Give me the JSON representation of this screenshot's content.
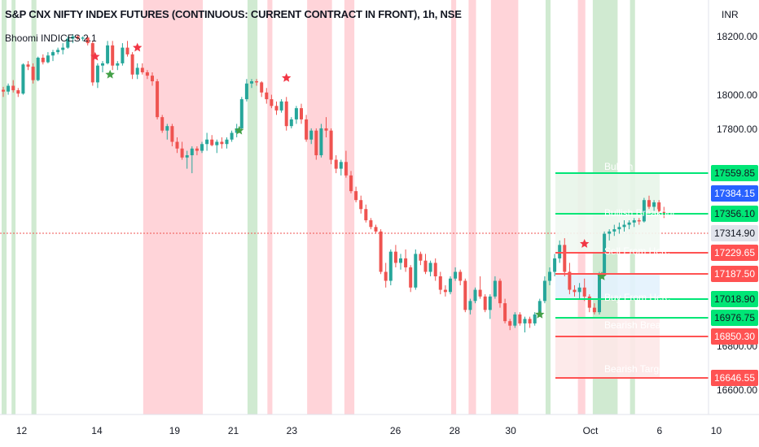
{
  "header": {
    "title": "S&P CNX NIFTY INDEX FUTURES (CONTINUOUS: CURRENT CONTRACT IN FRONT), 1h, NSE",
    "indicator": "Bhoomi INDICES 2.1"
  },
  "colors": {
    "bull": "#26a69a",
    "bear": "#ef5350",
    "green_band": "#c8e6c9",
    "red_band": "#ffcdd2",
    "line_green": "#00e676",
    "line_red": "#ff5252",
    "last_price": "#1e88e5"
  },
  "chart_data": {
    "type": "candlestick",
    "currency": "INR",
    "ylim": [
      15900,
      18320
    ],
    "y_ticks": [
      18200,
      18000,
      17800,
      16800,
      16600
    ],
    "y_tick_labels": [
      "18200.00",
      "18000.00",
      "17800.00",
      "16800.00",
      "16600.00"
    ],
    "x_ticks": [
      {
        "label": "12",
        "x": 1.5
      },
      {
        "label": "14",
        "x": 32
      },
      {
        "label": "19",
        "x": 63.5
      },
      {
        "label": "21",
        "x": 87.3
      },
      {
        "label": "23",
        "x": 111
      },
      {
        "label": "26",
        "x": 153
      },
      {
        "label": "28",
        "x": 177
      },
      {
        "label": "30",
        "x": 199.7
      },
      {
        "label": "Oct",
        "x": 232
      },
      {
        "label": "6",
        "x": 260
      },
      {
        "label": "10",
        "x": 283
      }
    ],
    "last_price": 17314.9,
    "levels": [
      {
        "name": "Bullish Target",
        "value": 17559.85,
        "label": "17559.85",
        "tone": "green"
      },
      {
        "name": "Bullish Breakout",
        "value": 17356.1,
        "label": "17356.10",
        "tone": "green"
      },
      {
        "name": "Sell From Here",
        "value": 17229.65,
        "label": "17229.65",
        "tone": "red"
      },
      {
        "name": "Sell From Here",
        "value": 17187.5,
        "label": "17187.50",
        "tone": "red"
      },
      {
        "name": "Buy From Here",
        "value": 17018.9,
        "label": "17018.90",
        "tone": "green"
      },
      {
        "name": "Buy From Here",
        "value": 16976.75,
        "label": "16976.75",
        "tone": "green"
      },
      {
        "name": "Bearish Breakout",
        "value": 16850.3,
        "label": "16850.30",
        "tone": "red"
      },
      {
        "name": "Bearish Target",
        "value": 16646.55,
        "label": "16646.55",
        "tone": "red"
      }
    ],
    "badges": [
      {
        "value": 17559.85,
        "label": "17559.85",
        "tone": "green"
      },
      {
        "value": 17384.15,
        "label": "17384.15",
        "tone": "blue"
      },
      {
        "value": 17356.1,
        "label": "17356.10",
        "tone": "green"
      },
      {
        "value": 17314.9,
        "label": "17314.90",
        "tone": "gray"
      },
      {
        "value": 17229.65,
        "label": "17229.65",
        "tone": "red"
      },
      {
        "value": 17187.5,
        "label": "17187.50",
        "tone": "red"
      },
      {
        "value": 17018.9,
        "label": "17018.90",
        "tone": "green"
      },
      {
        "value": 16976.75,
        "label": "16976.75",
        "tone": "green"
      },
      {
        "value": 16850.3,
        "label": "16850.30",
        "tone": "red"
      },
      {
        "value": 16646.55,
        "label": "16646.55",
        "tone": "red"
      }
    ],
    "level_captions": [
      "Bullish Target",
      "Bullish Breakout",
      "Sell From Here",
      "Buy From Here",
      "Bearish Breakout",
      "Bearish Target"
    ],
    "bands": [
      {
        "from": 0,
        "to": 1,
        "tone": "green"
      },
      {
        "from": 2,
        "to": 2.8,
        "tone": "green"
      },
      {
        "from": 6,
        "to": 7,
        "tone": "green"
      },
      {
        "from": 28.5,
        "to": 40.5,
        "tone": "red"
      },
      {
        "from": 49.5,
        "to": 51.5,
        "tone": "green"
      },
      {
        "from": 53.5,
        "to": 54.5,
        "tone": "red"
      },
      {
        "from": 61.5,
        "to": 66.5,
        "tone": "red"
      },
      {
        "from": 69,
        "to": 71,
        "tone": "red"
      },
      {
        "from": 90.5,
        "to": 91.5,
        "tone": "red"
      },
      {
        "from": 94,
        "to": 95.5,
        "tone": "red"
      },
      {
        "from": 98.5,
        "to": 104,
        "tone": "red"
      },
      {
        "from": 109.5,
        "to": 110.5,
        "tone": "green"
      },
      {
        "from": 116,
        "to": 117.5,
        "tone": "red"
      },
      {
        "from": 119,
        "to": 124,
        "tone": "green"
      },
      {
        "from": 126.5,
        "to": 127.5,
        "tone": "green"
      }
    ],
    "stars": [
      {
        "x": 18.5,
        "y": 18020,
        "tone": "red"
      },
      {
        "x": 21.5,
        "y": 17940,
        "tone": "green"
      },
      {
        "x": 27,
        "y": 18060,
        "tone": "red"
      },
      {
        "x": 47.5,
        "y": 17690,
        "tone": "green"
      },
      {
        "x": 57,
        "y": 17925,
        "tone": "red"
      },
      {
        "x": 108,
        "y": 16870,
        "tone": "green"
      },
      {
        "x": 117,
        "y": 17185,
        "tone": "red"
      },
      {
        "x": 120.5,
        "y": 17040,
        "tone": "green"
      }
    ],
    "candles": [
      [
        17872,
        17885,
        17840,
        17864
      ],
      [
        17864,
        17900,
        17850,
        17890
      ],
      [
        17890,
        17915,
        17860,
        17870
      ],
      [
        17870,
        17880,
        17840,
        17855
      ],
      [
        17855,
        17990,
        17850,
        17985
      ],
      [
        17985,
        18000,
        17960,
        17975
      ],
      [
        17975,
        17990,
        17900,
        17915
      ],
      [
        17915,
        18020,
        17910,
        18015
      ],
      [
        18015,
        18030,
        17985,
        17995
      ],
      [
        17995,
        18040,
        17990,
        18025
      ],
      [
        18025,
        18050,
        18000,
        18040
      ],
      [
        18040,
        18060,
        18030,
        18050
      ],
      [
        18050,
        18080,
        18030,
        18060
      ],
      [
        18060,
        18110,
        18055,
        18100
      ],
      [
        18100,
        18120,
        18080,
        18110
      ],
      [
        18110,
        18115,
        18095,
        18100
      ],
      [
        18100,
        18110,
        18090,
        18105
      ],
      [
        18105,
        18110,
        18070,
        18080
      ],
      [
        18080,
        18090,
        17890,
        17905
      ],
      [
        17905,
        17990,
        17880,
        17980
      ],
      [
        17980,
        18000,
        17950,
        17990
      ],
      [
        17990,
        18090,
        17985,
        18070
      ],
      [
        18070,
        18090,
        17960,
        17980
      ],
      [
        17980,
        18000,
        17960,
        17990
      ],
      [
        17990,
        18080,
        17980,
        18060
      ],
      [
        18060,
        18090,
        18020,
        18030
      ],
      [
        18030,
        18040,
        17920,
        17940
      ],
      [
        17940,
        17990,
        17920,
        17970
      ],
      [
        17970,
        17990,
        17940,
        17950
      ],
      [
        17950,
        17960,
        17920,
        17935
      ],
      [
        17935,
        17950,
        17890,
        17910
      ],
      [
        17910,
        17920,
        17740,
        17750
      ],
      [
        17750,
        17760,
        17680,
        17690
      ],
      [
        17690,
        17720,
        17650,
        17710
      ],
      [
        17710,
        17720,
        17620,
        17640
      ],
      [
        17640,
        17660,
        17590,
        17610
      ],
      [
        17610,
        17640,
        17560,
        17570
      ],
      [
        17570,
        17600,
        17520,
        17580
      ],
      [
        17580,
        17620,
        17500,
        17610
      ],
      [
        17610,
        17620,
        17580,
        17600
      ],
      [
        17600,
        17640,
        17590,
        17630
      ],
      [
        17630,
        17680,
        17600,
        17650
      ],
      [
        17650,
        17670,
        17620,
        17625
      ],
      [
        17625,
        17650,
        17590,
        17640
      ],
      [
        17640,
        17660,
        17610,
        17630
      ],
      [
        17630,
        17660,
        17610,
        17650
      ],
      [
        17650,
        17690,
        17640,
        17680
      ],
      [
        17680,
        17720,
        17660,
        17700
      ],
      [
        17700,
        17840,
        17690,
        17830
      ],
      [
        17830,
        17920,
        17820,
        17900
      ],
      [
        17900,
        17920,
        17880,
        17910
      ],
      [
        17910,
        17920,
        17890,
        17905
      ],
      [
        17905,
        17910,
        17840,
        17860
      ],
      [
        17860,
        17880,
        17810,
        17830
      ],
      [
        17830,
        17850,
        17790,
        17800
      ],
      [
        17800,
        17820,
        17760,
        17780
      ],
      [
        17780,
        17830,
        17770,
        17820
      ],
      [
        17820,
        17840,
        17690,
        17710
      ],
      [
        17710,
        17750,
        17700,
        17740
      ],
      [
        17740,
        17800,
        17720,
        17790
      ],
      [
        17790,
        17810,
        17720,
        17740
      ],
      [
        17740,
        17760,
        17640,
        17650
      ],
      [
        17650,
        17700,
        17630,
        17690
      ],
      [
        17690,
        17700,
        17560,
        17580
      ],
      [
        17580,
        17720,
        17570,
        17700
      ],
      [
        17700,
        17750,
        17660,
        17690
      ],
      [
        17690,
        17700,
        17540,
        17560
      ],
      [
        17560,
        17580,
        17500,
        17520
      ],
      [
        17520,
        17560,
        17490,
        17550
      ],
      [
        17550,
        17600,
        17480,
        17490
      ],
      [
        17490,
        17510,
        17410,
        17420
      ],
      [
        17420,
        17440,
        17370,
        17380
      ],
      [
        17380,
        17400,
        17320,
        17340
      ],
      [
        17340,
        17360,
        17280,
        17290
      ],
      [
        17290,
        17300,
        17250,
        17260
      ],
      [
        17260,
        17270,
        17230,
        17240
      ],
      [
        17240,
        17250,
        17050,
        17060
      ],
      [
        17060,
        17100,
        16990,
        17020
      ],
      [
        17020,
        17160,
        17000,
        17150
      ],
      [
        17150,
        17180,
        17080,
        17100
      ],
      [
        17100,
        17140,
        17070,
        17120
      ],
      [
        17120,
        17160,
        17060,
        17080
      ],
      [
        17080,
        17090,
        16970,
        16990
      ],
      [
        16990,
        17160,
        16980,
        17140
      ],
      [
        17140,
        17150,
        17090,
        17110
      ],
      [
        17110,
        17140,
        17050,
        17060
      ],
      [
        17060,
        17110,
        17040,
        17100
      ],
      [
        17100,
        17120,
        17020,
        17040
      ],
      [
        17040,
        17060,
        16960,
        16980
      ],
      [
        16980,
        17000,
        16950,
        16970
      ],
      [
        16970,
        17040,
        16960,
        17030
      ],
      [
        17030,
        17080,
        17020,
        17060
      ],
      [
        17060,
        17070,
        17000,
        17020
      ],
      [
        17020,
        17030,
        16880,
        16890
      ],
      [
        16890,
        16940,
        16870,
        16930
      ],
      [
        16930,
        16990,
        16920,
        16980
      ],
      [
        16980,
        17040,
        16940,
        16950
      ],
      [
        16950,
        16960,
        16880,
        16890
      ],
      [
        16890,
        16960,
        16850,
        16950
      ],
      [
        16950,
        17040,
        16940,
        17020
      ],
      [
        17020,
        17030,
        16900,
        16920
      ],
      [
        16920,
        16940,
        16830,
        16840
      ],
      [
        16840,
        16850,
        16800,
        16820
      ],
      [
        16820,
        16880,
        16810,
        16870
      ],
      [
        16870,
        16880,
        16820,
        16830
      ],
      [
        16830,
        16860,
        16790,
        16850
      ],
      [
        16850,
        16860,
        16810,
        16830
      ],
      [
        16830,
        16880,
        16820,
        16870
      ],
      [
        16870,
        16940,
        16860,
        16930
      ],
      [
        16930,
        17040,
        16920,
        17020
      ],
      [
        17020,
        17080,
        17000,
        17060
      ],
      [
        17060,
        17140,
        17040,
        17120
      ],
      [
        17120,
        17200,
        17100,
        17180
      ],
      [
        17180,
        17210,
        17040,
        17060
      ],
      [
        17060,
        17100,
        16960,
        16980
      ],
      [
        16980,
        17000,
        16950,
        16970
      ],
      [
        16970,
        17010,
        16940,
        16990
      ],
      [
        16990,
        17030,
        16930,
        16950
      ],
      [
        16950,
        16960,
        16880,
        16900
      ],
      [
        16900,
        16920,
        16870,
        16880
      ],
      [
        16880,
        17060,
        16870,
        17050
      ],
      [
        17050,
        17240,
        17040,
        17230
      ],
      [
        17230,
        17250,
        17200,
        17240
      ],
      [
        17240,
        17270,
        17220,
        17250
      ],
      [
        17250,
        17280,
        17230,
        17260
      ],
      [
        17260,
        17290,
        17240,
        17270
      ],
      [
        17270,
        17290,
        17250,
        17280
      ],
      [
        17280,
        17300,
        17260,
        17290
      ],
      [
        17290,
        17300,
        17270,
        17285
      ],
      [
        17285,
        17390,
        17280,
        17380
      ],
      [
        17380,
        17400,
        17340,
        17350
      ],
      [
        17350,
        17380,
        17330,
        17370
      ],
      [
        17370,
        17380,
        17320,
        17330
      ],
      [
        17330,
        17350,
        17300,
        17315
      ]
    ]
  }
}
